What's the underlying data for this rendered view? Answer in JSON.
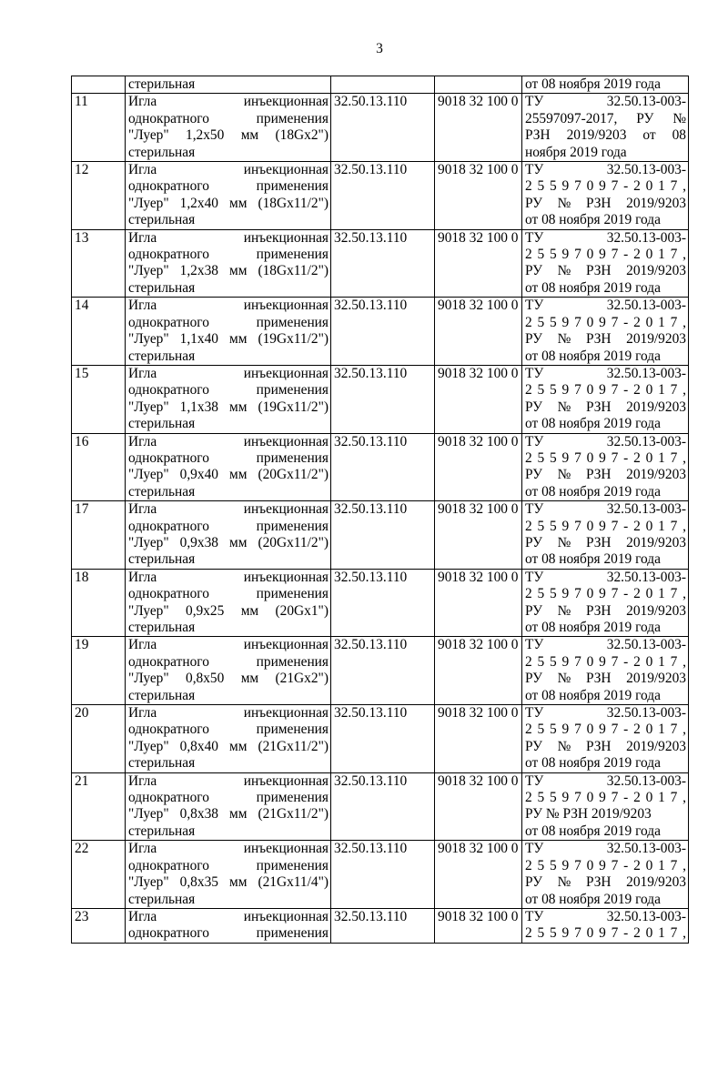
{
  "page": {
    "number": "3"
  },
  "table": {
    "carryover": {
      "num": "",
      "name": [
        {
          "t": "стерильная",
          "f": "plain"
        }
      ],
      "okpd2": "",
      "tnved": "",
      "reg": [
        {
          "t": "от 08 ноября 2019 года",
          "f": "plain"
        }
      ]
    },
    "rows": [
      {
        "num": "11",
        "name": [
          {
            "t": "Игла инъекционная",
            "f": "words"
          },
          {
            "t": "однократного применения",
            "f": "words"
          },
          {
            "t": "\"Луер\" 1,2x50 мм (18Gx2\")",
            "f": "words"
          },
          {
            "t": "стерильная",
            "f": "plain"
          }
        ],
        "okpd2": "32.50.13.110",
        "tnved": "9018 32 100 0",
        "reg": [
          {
            "t": "ТУ 32.50.13-003-",
            "f": "words"
          },
          {
            "t": "25597097-2017, РУ №",
            "f": "words"
          },
          {
            "t": "РЗН 2019/9203 от 08",
            "f": "words"
          },
          {
            "t": "ноября 2019 года",
            "f": "plain"
          }
        ]
      },
      {
        "num": "12",
        "name": [
          {
            "t": "Игла инъекционная",
            "f": "words"
          },
          {
            "t": "однократного применения",
            "f": "words"
          },
          {
            "t": "\"Луер\" 1,2x40 мм (18Gx11/2\")",
            "f": "words"
          },
          {
            "t": "стерильная",
            "f": "plain"
          }
        ],
        "okpd2": "32.50.13.110",
        "tnved": "9018 32 100 0",
        "reg": [
          {
            "t": "ТУ 32.50.13-003-",
            "f": "words"
          },
          {
            "t": "25597097-2017,",
            "f": "letters"
          },
          {
            "t": "РУ № РЗН 2019/9203",
            "f": "words"
          },
          {
            "t": "от 08 ноября 2019 года",
            "f": "plain"
          }
        ]
      },
      {
        "num": "13",
        "name": [
          {
            "t": "Игла инъекционная",
            "f": "words"
          },
          {
            "t": "однократного применения",
            "f": "words"
          },
          {
            "t": "\"Луер\" 1,2x38 мм (18Gx11/2\")",
            "f": "words"
          },
          {
            "t": "стерильная",
            "f": "plain"
          }
        ],
        "okpd2": "32.50.13.110",
        "tnved": "9018 32 100 0",
        "reg": [
          {
            "t": "ТУ 32.50.13-003-",
            "f": "words"
          },
          {
            "t": "25597097-2017,",
            "f": "letters"
          },
          {
            "t": "РУ № РЗН 2019/9203",
            "f": "words"
          },
          {
            "t": "от 08 ноября 2019 года",
            "f": "plain"
          }
        ]
      },
      {
        "num": "14",
        "name": [
          {
            "t": "Игла инъекционная",
            "f": "words"
          },
          {
            "t": "однократного применения",
            "f": "words"
          },
          {
            "t": "\"Луер\" 1,1x40 мм (19Gx11/2\")",
            "f": "words"
          },
          {
            "t": "стерильная",
            "f": "plain"
          }
        ],
        "okpd2": "32.50.13.110",
        "tnved": "9018 32 100 0",
        "reg": [
          {
            "t": "ТУ 32.50.13-003-",
            "f": "words"
          },
          {
            "t": "25597097-2017,",
            "f": "letters"
          },
          {
            "t": "РУ № РЗН 2019/9203",
            "f": "words"
          },
          {
            "t": "от 08 ноября 2019 года",
            "f": "plain"
          }
        ]
      },
      {
        "num": "15",
        "name": [
          {
            "t": "Игла инъекционная",
            "f": "words"
          },
          {
            "t": "однократного применения",
            "f": "words"
          },
          {
            "t": "\"Луер\" 1,1x38 мм (19Gx11/2\")",
            "f": "words"
          },
          {
            "t": "стерильная",
            "f": "plain"
          }
        ],
        "okpd2": "32.50.13.110",
        "tnved": "9018 32 100 0",
        "reg": [
          {
            "t": "ТУ 32.50.13-003-",
            "f": "words"
          },
          {
            "t": "25597097-2017,",
            "f": "letters"
          },
          {
            "t": "РУ № РЗН 2019/9203",
            "f": "words"
          },
          {
            "t": "от 08 ноября 2019 года",
            "f": "plain"
          }
        ]
      },
      {
        "num": "16",
        "name": [
          {
            "t": "Игла инъекционная",
            "f": "words"
          },
          {
            "t": "однократного применения",
            "f": "words"
          },
          {
            "t": "\"Луер\" 0,9x40 мм (20Gx11/2\")",
            "f": "words"
          },
          {
            "t": "стерильная",
            "f": "plain"
          }
        ],
        "okpd2": "32.50.13.110",
        "tnved": "9018 32 100 0",
        "reg": [
          {
            "t": "ТУ 32.50.13-003-",
            "f": "words"
          },
          {
            "t": "25597097-2017,",
            "f": "letters"
          },
          {
            "t": "РУ № РЗН 2019/9203",
            "f": "words"
          },
          {
            "t": "от 08 ноября 2019 года",
            "f": "plain"
          }
        ]
      },
      {
        "num": "17",
        "name": [
          {
            "t": "Игла инъекционная",
            "f": "words"
          },
          {
            "t": "однократного применения",
            "f": "words"
          },
          {
            "t": "\"Луер\" 0,9x38 мм (20Gx11/2\")",
            "f": "words"
          },
          {
            "t": "стерильная",
            "f": "plain"
          }
        ],
        "okpd2": "32.50.13.110",
        "tnved": "9018 32 100 0",
        "reg": [
          {
            "t": "ТУ 32.50.13-003-",
            "f": "words"
          },
          {
            "t": "25597097-2017,",
            "f": "letters"
          },
          {
            "t": "РУ № РЗН 2019/9203",
            "f": "words"
          },
          {
            "t": "от 08 ноября 2019 года",
            "f": "plain"
          }
        ]
      },
      {
        "num": "18",
        "name": [
          {
            "t": "Игла инъекционная",
            "f": "words"
          },
          {
            "t": "однократного применения",
            "f": "words"
          },
          {
            "t": "\"Луер\" 0,9x25 мм (20Gx1\")",
            "f": "words"
          },
          {
            "t": "стерильная",
            "f": "plain"
          }
        ],
        "okpd2": "32.50.13.110",
        "tnved": "9018 32 100 0",
        "reg": [
          {
            "t": "ТУ 32.50.13-003-",
            "f": "words"
          },
          {
            "t": "25597097-2017,",
            "f": "letters"
          },
          {
            "t": "РУ № РЗН 2019/9203",
            "f": "words"
          },
          {
            "t": "от 08 ноября 2019 года",
            "f": "plain"
          }
        ]
      },
      {
        "num": "19",
        "name": [
          {
            "t": "Игла инъекционная",
            "f": "words"
          },
          {
            "t": "однократного применения",
            "f": "words"
          },
          {
            "t": "\"Луер\" 0,8x50 мм (21Gx2\")",
            "f": "words"
          },
          {
            "t": "стерильная",
            "f": "plain"
          }
        ],
        "okpd2": "32.50.13.110",
        "tnved": "9018 32 100 0",
        "reg": [
          {
            "t": "ТУ 32.50.13-003-",
            "f": "words"
          },
          {
            "t": "25597097-2017,",
            "f": "letters"
          },
          {
            "t": "РУ № РЗН 2019/9203",
            "f": "words"
          },
          {
            "t": "от 08 ноября 2019 года",
            "f": "plain"
          }
        ]
      },
      {
        "num": "20",
        "name": [
          {
            "t": "Игла инъекционная",
            "f": "words"
          },
          {
            "t": "однократного применения",
            "f": "words"
          },
          {
            "t": "\"Луер\" 0,8x40 мм (21Gx11/2\")",
            "f": "words"
          },
          {
            "t": "стерильная",
            "f": "plain"
          }
        ],
        "okpd2": "32.50.13.110",
        "tnved": "9018 32 100 0",
        "reg": [
          {
            "t": "ТУ 32.50.13-003-",
            "f": "words"
          },
          {
            "t": "25597097-2017,",
            "f": "letters"
          },
          {
            "t": "РУ № РЗН 2019/9203",
            "f": "words"
          },
          {
            "t": "от 08 ноября 2019 года",
            "f": "plain"
          }
        ]
      },
      {
        "num": "21",
        "name": [
          {
            "t": "Игла инъекционная",
            "f": "words"
          },
          {
            "t": "однократного применения",
            "f": "words"
          },
          {
            "t": "\"Луер\" 0,8x38 мм (21Gx11/2\")",
            "f": "words"
          },
          {
            "t": "стерильная",
            "f": "plain"
          }
        ],
        "okpd2": "32.50.13.110",
        "tnved": "9018 32 100 0",
        "reg": [
          {
            "t": "ТУ 32.50.13-003-",
            "f": "words"
          },
          {
            "t": "25597097-2017,",
            "f": "letters"
          },
          {
            "t": "РУ № РЗН 2019/9203",
            "f": "plain"
          },
          {
            "t": "от 08 ноября 2019 года",
            "f": "plain"
          }
        ]
      },
      {
        "num": "22",
        "name": [
          {
            "t": "Игла инъекционная",
            "f": "words"
          },
          {
            "t": "однократного применения",
            "f": "words"
          },
          {
            "t": "\"Луер\" 0,8x35 мм (21Gx11/4\")",
            "f": "words"
          },
          {
            "t": "стерильная",
            "f": "plain"
          }
        ],
        "okpd2": "32.50.13.110",
        "tnved": "9018 32 100 0",
        "reg": [
          {
            "t": "ТУ 32.50.13-003-",
            "f": "words"
          },
          {
            "t": "25597097-2017,",
            "f": "letters"
          },
          {
            "t": "РУ № РЗН 2019/9203",
            "f": "words"
          },
          {
            "t": "от 08 ноября 2019 года",
            "f": "plain"
          }
        ]
      },
      {
        "num": "23",
        "name": [
          {
            "t": "Игла инъекционная",
            "f": "words"
          },
          {
            "t": "однократного применения",
            "f": "words"
          }
        ],
        "okpd2": "32.50.13.110",
        "tnved": "9018 32 100 0",
        "reg": [
          {
            "t": "ТУ 32.50.13-003-",
            "f": "words"
          },
          {
            "t": "25597097-2017,",
            "f": "letters"
          }
        ]
      }
    ]
  }
}
